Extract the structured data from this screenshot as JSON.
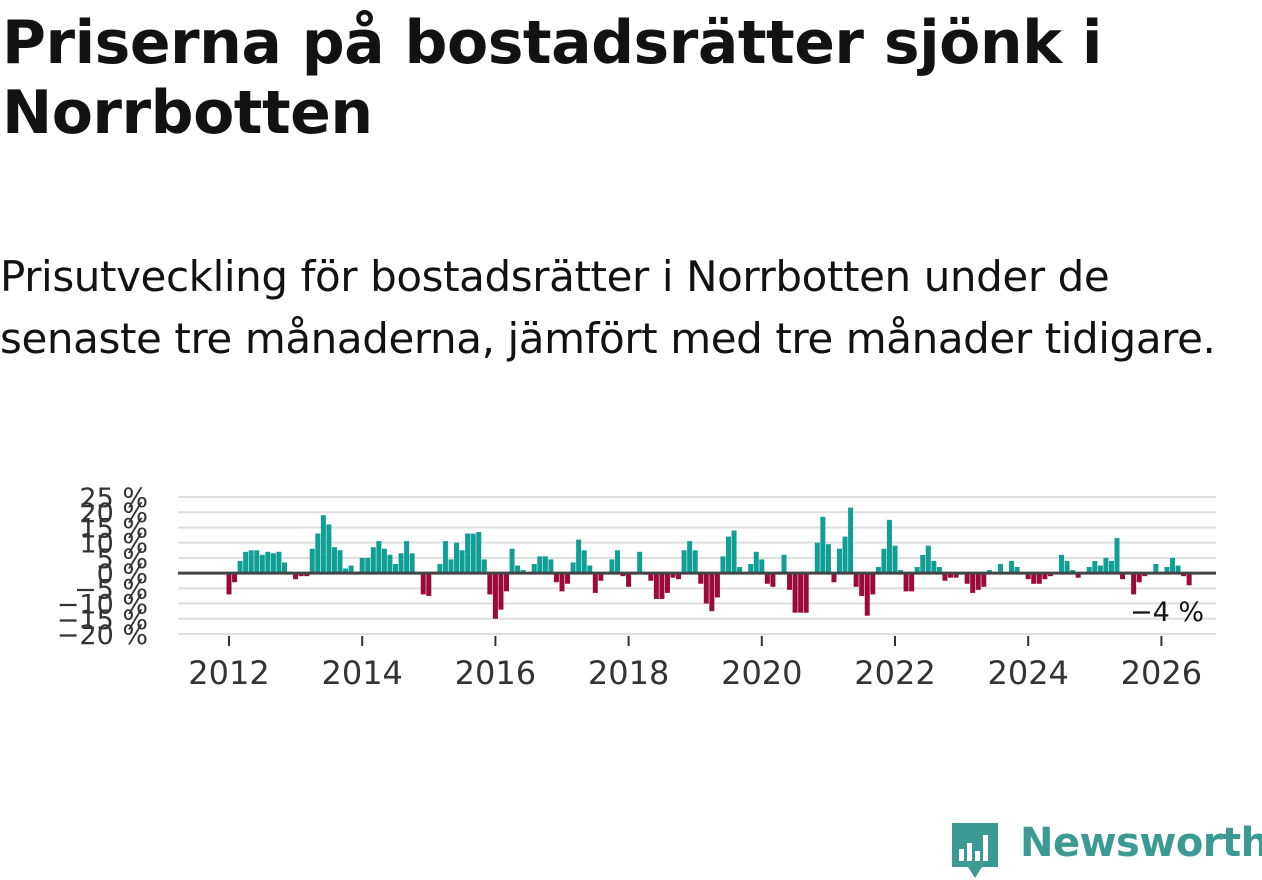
{
  "title": "Priserna på bostadsrätter sjönk i Norrbotten",
  "subtitle": "Prisutveckling för bostadsrätter i Norrbotten under de senaste tre månaderna, jämfört med tre månader tidigare.",
  "brand": {
    "name": "Newsworthy",
    "color": "#3c9a94",
    "icon": "newsworthy-logo-icon"
  },
  "chart_data": {
    "type": "bar",
    "unit": "%",
    "ylim": [
      -20,
      25
    ],
    "y_ticks": [
      25,
      20,
      15,
      10,
      5,
      0,
      -5,
      -10,
      -15,
      -20
    ],
    "y_tick_labels": [
      "25 %",
      "20 %",
      "15 %",
      "10 %",
      "5 %",
      "0 %",
      "−5 %",
      "−10 %",
      "−15 %",
      "−20 %"
    ],
    "x_ticks": [
      2012,
      2014,
      2016,
      2018,
      2020,
      2022,
      2024,
      2026
    ],
    "x_tick_labels": [
      "2012",
      "2014",
      "2016",
      "2018",
      "2020",
      "2022",
      "2024",
      "2026"
    ],
    "start": "2012-01",
    "last_label": "−4 %",
    "positive_color": "#0f9f94",
    "negative_color": "#9b0a3b",
    "values": [
      -7,
      -3,
      4,
      7,
      7.5,
      7.5,
      6,
      7,
      6.5,
      7,
      3.5,
      0.5,
      -2,
      -1,
      -1,
      8,
      13,
      19,
      16,
      8.5,
      7.5,
      1.5,
      2.5,
      0.5,
      5,
      5,
      8.5,
      10.5,
      8,
      6,
      3,
      6.5,
      10.5,
      6.5,
      0,
      -7,
      -7.5,
      0,
      3,
      10.5,
      4.5,
      10,
      7.5,
      13,
      13,
      13.5,
      4.5,
      -7,
      -15,
      -12,
      -6,
      8,
      2.5,
      1,
      0,
      3,
      5.5,
      5.5,
      4.5,
      -3,
      -6,
      -3.5,
      3.5,
      11,
      7.5,
      2.5,
      -6.5,
      -2.5,
      0,
      4.5,
      7.5,
      -1,
      -4.5,
      -0.5,
      7,
      -0.5,
      -2.5,
      -8.5,
      -8.5,
      -6.5,
      -1.5,
      -2,
      7.5,
      10.5,
      7.5,
      -3.5,
      -10,
      -12.5,
      -8,
      5.5,
      12,
      14,
      2,
      0,
      3,
      7,
      4.5,
      -3.5,
      -4.5,
      0.5,
      6,
      -5.5,
      -13,
      -13,
      -13,
      0.5,
      10,
      18.5,
      9.5,
      -3,
      8,
      12,
      21.5,
      -4.5,
      -7.5,
      -14,
      -7,
      2,
      8,
      17.5,
      9,
      1,
      -6,
      -6,
      2,
      6,
      9,
      4,
      2,
      -2.5,
      -1.5,
      -1.5,
      0,
      -3.5,
      -6.5,
      -5.5,
      -4.5,
      1,
      0,
      3,
      0,
      4,
      2,
      0,
      -2,
      -3.5,
      -3.5,
      -2,
      -1,
      0,
      6,
      4,
      1,
      -1.5,
      0,
      2,
      4,
      2.5,
      5,
      4,
      11.5,
      -2,
      0.5,
      -7,
      -3,
      -1,
      0,
      3,
      0,
      2,
      5,
      2.5,
      -1,
      -4
    ]
  }
}
